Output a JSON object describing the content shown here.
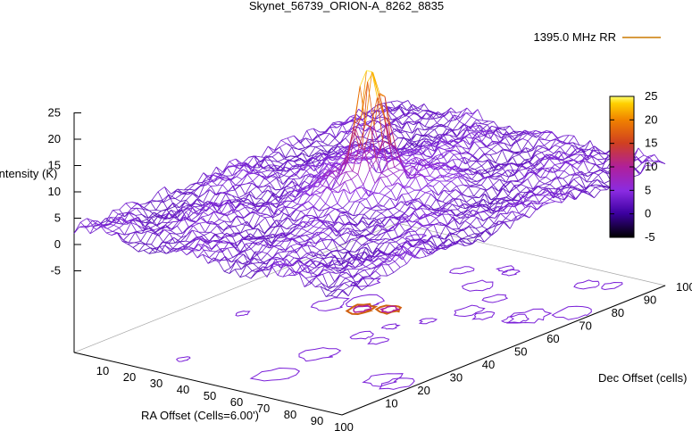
{
  "chart_data": {
    "type": "surface",
    "title": "Skynet_56739_ORION-A_8262_8835",
    "xlabel": "RA Offset (Cells=6.00')",
    "ylabel": "Dec Offset (cells)",
    "zlabel": "Intensity (K)",
    "legend": [
      {
        "name": "1395.0 MHz RR",
        "color": "#cc7a00"
      }
    ],
    "x_ticks": [
      "10",
      "20",
      "30",
      "40",
      "50",
      "60",
      "70",
      "80",
      "90",
      "100"
    ],
    "y_ticks": [
      "10",
      "20",
      "30",
      "40",
      "50",
      "60",
      "70",
      "80",
      "90",
      "100"
    ],
    "z_ticks": [
      "25",
      "20",
      "15",
      "10",
      "5",
      "0",
      "-5"
    ],
    "colorbar_ticks": [
      "25",
      "20",
      "15",
      "10",
      "5",
      "0",
      "-5"
    ],
    "x_range": [
      0,
      100
    ],
    "y_range": [
      0,
      100
    ],
    "z_range": [
      -5,
      25
    ],
    "colorbar_range": [
      -5,
      25
    ],
    "legend_position": "top-right",
    "colormap": [
      "#000000",
      "#3c00a0",
      "#8a2be2",
      "#b0209a",
      "#d04020",
      "#f08000",
      "#ffd000",
      "#ffff70"
    ],
    "peak": {
      "x": 45,
      "y": 55,
      "z": 25
    },
    "background_level": 3
  }
}
